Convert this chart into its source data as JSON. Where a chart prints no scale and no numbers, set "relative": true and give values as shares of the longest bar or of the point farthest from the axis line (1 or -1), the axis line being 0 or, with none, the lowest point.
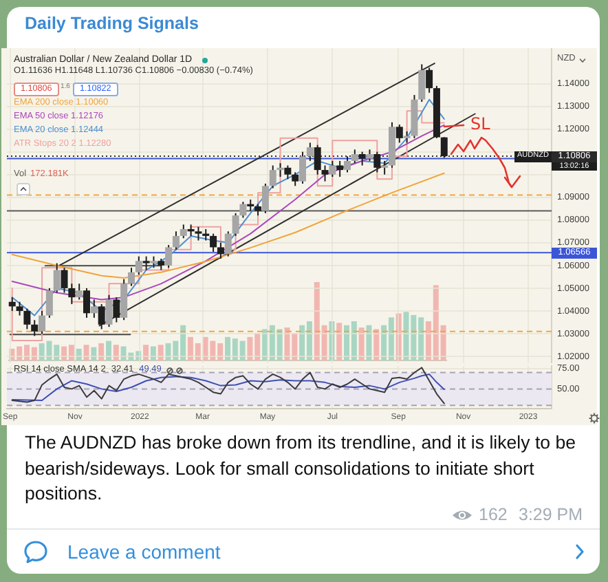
{
  "chart_data": [
    {
      "type": "candlestick",
      "title": "Daily Trading Signals",
      "subtitle": "Australian Dollar / New Zealand Dollar 1D",
      "x": [
        "2021-09-03",
        "2021-09-10",
        "2021-09-17",
        "2021-09-24",
        "2021-10-01",
        "2021-10-08",
        "2021-10-15",
        "2021-10-22",
        "2021-10-29",
        "2021-11-05",
        "2021-11-12",
        "2021-11-19",
        "2021-11-26",
        "2021-12-03",
        "2021-12-10",
        "2021-12-17",
        "2021-12-24",
        "2021-12-31",
        "2022-01-07",
        "2022-01-14",
        "2022-01-21",
        "2022-01-28",
        "2022-02-04",
        "2022-02-11",
        "2022-02-18",
        "2022-02-25",
        "2022-03-04",
        "2022-03-11",
        "2022-03-18",
        "2022-03-25",
        "2022-04-01",
        "2022-04-08",
        "2022-04-15",
        "2022-04-22",
        "2022-04-29",
        "2022-05-06",
        "2022-05-13",
        "2022-05-20",
        "2022-05-27",
        "2022-06-03",
        "2022-06-10",
        "2022-06-17",
        "2022-06-24",
        "2022-07-01",
        "2022-07-08",
        "2022-07-15",
        "2022-07-22",
        "2022-07-29",
        "2022-08-05",
        "2022-08-12",
        "2022-08-19",
        "2022-08-26",
        "2022-09-02",
        "2022-09-09",
        "2022-09-16",
        "2022-09-23",
        "2022-09-30",
        "2022-10-07",
        "2022-10-14"
      ],
      "ohlc": [
        [
          1.044,
          1.046,
          1.04,
          1.042
        ],
        [
          1.042,
          1.044,
          1.038,
          1.04
        ],
        [
          1.04,
          1.041,
          1.032,
          1.034
        ],
        [
          1.034,
          1.036,
          1.029,
          1.031
        ],
        [
          1.031,
          1.04,
          1.03,
          1.038
        ],
        [
          1.038,
          1.05,
          1.037,
          1.049
        ],
        [
          1.049,
          1.061,
          1.048,
          1.058
        ],
        [
          1.058,
          1.059,
          1.048,
          1.05
        ],
        [
          1.05,
          1.052,
          1.043,
          1.046
        ],
        [
          1.046,
          1.052,
          1.045,
          1.049
        ],
        [
          1.049,
          1.05,
          1.037,
          1.039
        ],
        [
          1.039,
          1.045,
          1.037,
          1.042
        ],
        [
          1.042,
          1.043,
          1.032,
          1.034
        ],
        [
          1.034,
          1.047,
          1.033,
          1.045
        ],
        [
          1.045,
          1.046,
          1.035,
          1.037
        ],
        [
          1.037,
          1.054,
          1.036,
          1.052
        ],
        [
          1.052,
          1.059,
          1.051,
          1.057
        ],
        [
          1.057,
          1.064,
          1.056,
          1.062
        ],
        [
          1.062,
          1.064,
          1.058,
          1.061
        ],
        [
          1.061,
          1.064,
          1.059,
          1.062
        ],
        [
          1.062,
          1.063,
          1.058,
          1.06
        ],
        [
          1.06,
          1.069,
          1.059,
          1.068
        ],
        [
          1.068,
          1.075,
          1.067,
          1.073
        ],
        [
          1.073,
          1.078,
          1.072,
          1.076
        ],
        [
          1.076,
          1.078,
          1.073,
          1.075
        ],
        [
          1.075,
          1.077,
          1.071,
          1.074
        ],
        [
          1.074,
          1.076,
          1.071,
          1.073
        ],
        [
          1.073,
          1.074,
          1.066,
          1.068
        ],
        [
          1.068,
          1.07,
          1.063,
          1.065
        ],
        [
          1.065,
          1.075,
          1.064,
          1.074
        ],
        [
          1.074,
          1.083,
          1.073,
          1.082
        ],
        [
          1.082,
          1.088,
          1.081,
          1.087
        ],
        [
          1.087,
          1.089,
          1.084,
          1.086
        ],
        [
          1.086,
          1.087,
          1.082,
          1.084
        ],
        [
          1.084,
          1.096,
          1.083,
          1.095
        ],
        [
          1.095,
          1.104,
          1.094,
          1.102
        ],
        [
          1.102,
          1.105,
          1.099,
          1.103
        ],
        [
          1.103,
          1.104,
          1.098,
          1.1
        ],
        [
          1.1,
          1.101,
          1.095,
          1.097
        ],
        [
          1.097,
          1.11,
          1.096,
          1.108
        ],
        [
          1.108,
          1.114,
          1.106,
          1.112
        ],
        [
          1.112,
          1.113,
          1.1,
          1.102
        ],
        [
          1.102,
          1.104,
          1.097,
          1.1
        ],
        [
          1.1,
          1.106,
          1.099,
          1.104
        ],
        [
          1.104,
          1.106,
          1.099,
          1.102
        ],
        [
          1.102,
          1.108,
          1.101,
          1.106
        ],
        [
          1.106,
          1.111,
          1.105,
          1.109
        ],
        [
          1.109,
          1.11,
          1.104,
          1.107
        ],
        [
          1.107,
          1.111,
          1.106,
          1.109
        ],
        [
          1.109,
          1.11,
          1.101,
          1.103
        ],
        [
          1.103,
          1.106,
          1.1,
          1.104
        ],
        [
          1.104,
          1.123,
          1.103,
          1.121
        ],
        [
          1.121,
          1.122,
          1.114,
          1.116
        ],
        [
          1.116,
          1.119,
          1.114,
          1.117
        ],
        [
          1.117,
          1.135,
          1.116,
          1.133
        ],
        [
          1.133,
          1.1485,
          1.132,
          1.146
        ],
        [
          1.146,
          1.147,
          1.136,
          1.138
        ],
        [
          1.138,
          1.139,
          1.116,
          1.1164
        ],
        [
          1.11636,
          1.11648,
          1.10736,
          1.10806
        ]
      ],
      "color": "#1f1f1f",
      "colors": [
        "#1f1f1f",
        "#1f1f1f",
        "#1f1f1f",
        "#1f1f1f",
        "#a6a6a6",
        "#a6a6a6",
        "#a6a6a6",
        "#1f1f1f",
        "#1f1f1f",
        "#a6a6a6",
        "#1f1f1f",
        "#a6a6a6",
        "#1f1f1f",
        "#a6a6a6",
        "#1f1f1f",
        "#a6a6a6",
        "#a6a6a6",
        "#a6a6a6",
        "#1f1f1f",
        "#a6a6a6",
        "#1f1f1f",
        "#a6a6a6",
        "#a6a6a6",
        "#a6a6a6",
        "#1f1f1f",
        "#1f1f1f",
        "#1f1f1f",
        "#1f1f1f",
        "#1f1f1f",
        "#a6a6a6",
        "#a6a6a6",
        "#a6a6a6",
        "#1f1f1f",
        "#1f1f1f",
        "#a6a6a6",
        "#a6a6a6",
        "#a6a6a6",
        "#1f1f1f",
        "#1f1f1f",
        "#a6a6a6",
        "#a6a6a6",
        "#1f1f1f",
        "#1f1f1f",
        "#a6a6a6",
        "#1f1f1f",
        "#a6a6a6",
        "#a6a6a6",
        "#1f1f1f",
        "#a6a6a6",
        "#1f1f1f",
        "#a6a6a6",
        "#a6a6a6",
        "#1f1f1f",
        "#a6a6a6",
        "#a6a6a6",
        "#a6a6a6",
        "#1f1f1f",
        "#1f1f1f",
        "#1f1f1f"
      ],
      "series": [
        {
          "name": "EMA 200 close 1.10060",
          "type": "line",
          "color": "#f2a33a",
          "x": [
            "2021-09-03",
            "2021-10-15",
            "2021-11-26",
            "2021-12-17",
            "2022-01-21",
            "2022-03-04",
            "2022-04-15",
            "2022-05-27",
            "2022-07-15",
            "2022-08-26",
            "2022-10-14"
          ],
          "values": [
            1.0648,
            1.06,
            1.0555,
            1.0545,
            1.057,
            1.0618,
            1.0678,
            1.0745,
            1.0842,
            1.092,
            1.1006
          ]
        },
        {
          "name": "EMA 50 close 1.12176",
          "type": "line",
          "color": "#ab47bc",
          "x": [
            "2021-09-03",
            "2021-10-15",
            "2021-11-26",
            "2021-12-17",
            "2022-01-21",
            "2022-03-04",
            "2022-04-15",
            "2022-05-27",
            "2022-06-24",
            "2022-07-29",
            "2022-08-26",
            "2022-09-23",
            "2022-10-14"
          ],
          "values": [
            1.053,
            1.048,
            1.045,
            1.046,
            1.052,
            1.062,
            1.074,
            1.089,
            1.1,
            1.106,
            1.11,
            1.117,
            1.12176
          ]
        },
        {
          "name": "EMA 20 close 1.12444",
          "type": "line",
          "color": "#4e8fd4",
          "x": [
            "2021-09-03",
            "2021-09-24",
            "2021-10-15",
            "2021-11-05",
            "2021-11-26",
            "2021-12-17",
            "2022-01-07",
            "2022-01-28",
            "2022-02-18",
            "2022-03-11",
            "2022-03-25",
            "2022-04-15",
            "2022-05-06",
            "2022-05-27",
            "2022-06-17",
            "2022-07-08",
            "2022-07-29",
            "2022-08-19",
            "2022-09-09",
            "2022-09-30",
            "2022-10-14"
          ],
          "values": [
            1.046,
            1.038,
            1.05,
            1.048,
            1.04,
            1.045,
            1.058,
            1.064,
            1.073,
            1.071,
            1.07,
            1.083,
            1.095,
            1.1,
            1.106,
            1.103,
            1.106,
            1.105,
            1.116,
            1.133,
            1.12444
          ]
        },
        {
          "name": "ATR Stops 20 2 1.12280",
          "type": "step",
          "color": "#f0a0a0",
          "x": [
            "2021-09-03",
            "2021-10-01",
            "2021-10-29",
            "2021-12-03",
            "2021-12-31",
            "2022-01-28",
            "2022-02-18",
            "2022-03-18",
            "2022-04-01",
            "2022-04-22",
            "2022-05-13",
            "2022-06-17",
            "2022-07-01",
            "2022-08-12",
            "2022-08-26",
            "2022-09-09",
            "2022-09-23",
            "2022-10-07",
            "2022-10-14"
          ],
          "values": [
            1.05,
            1.027,
            1.059,
            1.044,
            1.052,
            1.058,
            1.067,
            1.077,
            1.067,
            1.078,
            1.092,
            1.116,
            1.095,
            1.115,
            1.098,
            1.108,
            1.128,
            1.1228,
            1.1228
          ]
        },
        {
          "type": "line",
          "color": "#2f2f2f",
          "x": [
            "2021-10-17",
            "2022-10-05"
          ],
          "values": [
            1.0599,
            1.1489
          ]
        },
        {
          "type": "line",
          "color": "#2f2f2f",
          "x": [
            "2021-11-24",
            "2022-11-12"
          ],
          "values": [
            1.0335,
            1.1267
          ]
        },
        {
          "type": "line",
          "color": "#4a4a4a",
          "x": [
            "2021-10-04",
            "2022-01-21"
          ],
          "values": [
            1.0599,
            1.0599
          ]
        },
        {
          "type": "line",
          "color": "#4a4a4a",
          "x": [
            "2021-09-01",
            "2021-12-23"
          ],
          "values": [
            1.0296,
            1.0296
          ]
        }
      ],
      "xlim": [
        "2021-08-29",
        "2023-01-23"
      ],
      "xticks": [
        {
          "value": "2021-09-01",
          "label": null
        },
        {
          "value": "2021-11-01",
          "label": null
        },
        {
          "value": "2022-01-01",
          "label": null
        },
        {
          "value": "2022-03-01",
          "label": null
        },
        {
          "value": "2022-05-01",
          "label": null
        },
        {
          "value": "2022-07-01",
          "label": null
        },
        {
          "value": "2022-09-01",
          "label": null
        },
        {
          "value": "2022-11-01",
          "label": null
        },
        {
          "value": "2023-01-01",
          "label": null
        }
      ],
      "ylim": [
        1.017,
        1.1556
      ],
      "yticks": [
        {
          "value": 1.02,
          "label": "1.02000"
        },
        {
          "value": 1.03,
          "label": "1.03000"
        },
        {
          "value": 1.04,
          "label": "1.04000"
        },
        {
          "value": 1.05,
          "label": "1.05000"
        },
        {
          "value": 1.06,
          "label": "1.06000"
        },
        {
          "value": 1.07,
          "label": "1.07000"
        },
        {
          "value": 1.08,
          "label": "1.08000"
        },
        {
          "value": 1.09,
          "label": "1.09000"
        },
        {
          "value": 1.1,
          "label": null
        },
        {
          "value": 1.11,
          "label": null
        },
        {
          "value": 1.12,
          "label": "1.12000"
        },
        {
          "value": 1.13,
          "label": "1.13000"
        },
        {
          "value": 1.14,
          "label": "1.14000"
        }
      ],
      "ref_lines": [
        {
          "axis": "y",
          "value": 1.10806,
          "label": "1.10806",
          "color": "#2a2a2a",
          "line_style": "dotted"
        },
        {
          "axis": "y",
          "value": 1.107,
          "color": "#3b55d9"
        },
        {
          "axis": "y",
          "value": 1.06566,
          "label": "1.06566",
          "color": "#3b55d9"
        },
        {
          "axis": "y",
          "value": 1.084,
          "color": "#5a5a5a"
        },
        {
          "axis": "y",
          "value": 1.091,
          "color": "#f2a541",
          "line_style": "dashed"
        },
        {
          "axis": "y",
          "value": 1.031,
          "color": "#f2a541",
          "line_style": "dashed"
        }
      ],
      "annotations": [
        "O1.11636 H1.11648 L1.10736 C1.10806 −0.00830 (−0.74%)",
        "1.10806",
        "1.6",
        "1.10822",
        "NZD",
        "AUDNZD",
        "13:02:16",
        "SL",
        "The AUDNZD has broke down from its trendline, and it is likely to be bearish/sideways. Look for small consolidations to initiate short positions.",
        "162",
        "3:29 PM",
        "Leave a comment"
      ],
      "grid": true,
      "legend": "top left",
      "tick_labels": "y"
    },
    {
      "type": "bar",
      "title": "Vol",
      "categories": [
        null,
        null,
        null,
        null,
        null,
        null,
        null,
        null,
        null,
        null,
        null,
        null,
        null,
        null,
        null,
        null,
        null,
        null,
        null,
        null,
        null,
        null,
        null,
        null,
        null,
        null,
        null,
        null,
        null,
        null,
        null,
        null,
        null,
        null,
        null,
        null,
        null,
        null,
        null,
        null,
        null,
        null,
        null,
        null,
        null,
        null,
        null,
        null,
        null,
        null,
        null,
        null,
        null,
        null,
        null,
        null,
        null,
        null,
        null
      ],
      "values": [
        0.15,
        0.18,
        0.2,
        0.17,
        0.22,
        0.25,
        0.2,
        0.18,
        0.2,
        0.15,
        0.2,
        0.17,
        0.22,
        0.25,
        0.2,
        0.18,
        0.1,
        0.12,
        0.2,
        0.18,
        0.2,
        0.22,
        0.25,
        0.45,
        0.3,
        0.22,
        0.3,
        0.25,
        0.22,
        0.3,
        0.28,
        0.25,
        0.3,
        0.35,
        0.4,
        0.45,
        0.4,
        0.42,
        0.35,
        0.45,
        0.5,
        1,
        0.45,
        0.5,
        0.48,
        0.45,
        0.5,
        0.42,
        0.45,
        0.4,
        0.45,
        0.55,
        0.6,
        0.62,
        0.58,
        0.55,
        0.5,
        0.96,
        0.45
      ],
      "colors": [
        "#f2b6b1",
        "#f2b6b1",
        "#f2b6b1",
        "#f2b6b1",
        "#a9d6c3",
        "#a9d6c3",
        "#a9d6c3",
        "#f2b6b1",
        "#f2b6b1",
        "#a9d6c3",
        "#f2b6b1",
        "#a9d6c3",
        "#f2b6b1",
        "#a9d6c3",
        "#f2b6b1",
        "#a9d6c3",
        "#a9d6c3",
        "#a9d6c3",
        "#f2b6b1",
        "#a9d6c3",
        "#f2b6b1",
        "#a9d6c3",
        "#a9d6c3",
        "#a9d6c3",
        "#f2b6b1",
        "#f2b6b1",
        "#f2b6b1",
        "#f2b6b1",
        "#f2b6b1",
        "#a9d6c3",
        "#a9d6c3",
        "#a9d6c3",
        "#f2b6b1",
        "#f2b6b1",
        "#a9d6c3",
        "#a9d6c3",
        "#a9d6c3",
        "#f2b6b1",
        "#f2b6b1",
        "#a9d6c3",
        "#a9d6c3",
        "#f2b6b1",
        "#f2b6b1",
        "#a9d6c3",
        "#f2b6b1",
        "#a9d6c3",
        "#a9d6c3",
        "#f2b6b1",
        "#a9d6c3",
        "#f2b6b1",
        "#a9d6c3",
        "#a9d6c3",
        "#f2b6b1",
        "#a9d6c3",
        "#a9d6c3",
        "#a9d6c3",
        "#f2b6b1",
        "#f2b6b1",
        "#f2b6b1"
      ],
      "relative": true,
      "tick_labels": false,
      "annotations": [
        "172.181K"
      ]
    },
    {
      "type": "line",
      "title": "RSI 14 close SMA 14 2",
      "series": [
        {
          "color": "#3b3b3b",
          "x": [
            "2021-09-03",
            "2021-09-17",
            "2021-09-24",
            "2021-10-01",
            "2021-10-08",
            "2021-10-15",
            "2021-10-22",
            "2021-10-29",
            "2021-11-05",
            "2021-11-12",
            "2021-11-19",
            "2021-11-26",
            "2021-12-03",
            "2021-12-10",
            "2021-12-17",
            "2021-12-24",
            "2021-12-31",
            "2022-01-14",
            "2022-01-21",
            "2022-01-28",
            "2022-02-04",
            "2022-02-18",
            "2022-02-25",
            "2022-03-04",
            "2022-03-11",
            "2022-03-18",
            "2022-03-25",
            "2022-04-01",
            "2022-04-08",
            "2022-04-15",
            "2022-04-22",
            "2022-04-29",
            "2022-05-06",
            "2022-05-13",
            "2022-05-20",
            "2022-05-27",
            "2022-06-03",
            "2022-06-10",
            "2022-06-17",
            "2022-06-24",
            "2022-07-01",
            "2022-07-08",
            "2022-07-15",
            "2022-07-22",
            "2022-07-29",
            "2022-08-05",
            "2022-08-12",
            "2022-08-19",
            "2022-08-26",
            "2022-09-02",
            "2022-09-09",
            "2022-09-16",
            "2022-09-23",
            "2022-09-30",
            "2022-10-07",
            "2022-10-14"
          ],
          "values": [
            36,
            34,
            36,
            55,
            62,
            68,
            52,
            50,
            54,
            40,
            48,
            38,
            54,
            48,
            62,
            66,
            68,
            62,
            58,
            68,
            66,
            62,
            58,
            52,
            46,
            44,
            58,
            64,
            66,
            56,
            50,
            62,
            68,
            64,
            58,
            50,
            62,
            70,
            52,
            50,
            56,
            52,
            56,
            62,
            56,
            50,
            48,
            46,
            63,
            64,
            62,
            70,
            76,
            60,
            44,
            32.41
          ]
        },
        {
          "color": "#3e50b4",
          "x": [
            "2021-09-03",
            "2021-10-01",
            "2021-10-15",
            "2021-10-29",
            "2021-11-12",
            "2021-11-26",
            "2021-12-10",
            "2021-12-24",
            "2022-01-07",
            "2022-01-21",
            "2022-02-04",
            "2022-02-18",
            "2022-03-04",
            "2022-03-18",
            "2022-04-01",
            "2022-04-15",
            "2022-04-29",
            "2022-05-13",
            "2022-05-27",
            "2022-06-10",
            "2022-06-24",
            "2022-07-08",
            "2022-07-22",
            "2022-08-05",
            "2022-08-19",
            "2022-09-02",
            "2022-09-16",
            "2022-09-23",
            "2022-09-30",
            "2022-10-07",
            "2022-10-14"
          ],
          "values": [
            37,
            36,
            50,
            60,
            56,
            50,
            47,
            52,
            60,
            64,
            65,
            64,
            60,
            54,
            55,
            60,
            59,
            61,
            60,
            60,
            58,
            53,
            52,
            54,
            50,
            58,
            63,
            66,
            68,
            58,
            49.49
          ]
        }
      ],
      "xlim": [
        "2021-08-29",
        "2023-01-23"
      ],
      "xticks": [
        {
          "value": "2021-09-01",
          "label": "Sep"
        },
        {
          "value": "2021-11-01",
          "label": "Nov"
        },
        {
          "value": "2022-01-01",
          "label": "2022"
        },
        {
          "value": "2022-03-01",
          "label": "Mar"
        },
        {
          "value": "2022-05-01",
          "label": "May"
        },
        {
          "value": "2022-07-01",
          "label": "Jul"
        },
        {
          "value": "2022-09-01",
          "label": "Sep"
        },
        {
          "value": "2022-11-01",
          "label": "Nov"
        },
        {
          "value": "2023-01-01",
          "label": "2023"
        }
      ],
      "ylim": [
        26,
        78
      ],
      "yticks": [
        {
          "value": 50,
          "label": "50.00"
        },
        {
          "value": 75,
          "label": "75.00"
        }
      ],
      "ref_lines": [
        {
          "axis": "y",
          "value": 70,
          "color": "#a7a2b5",
          "line_style": "dashed"
        },
        {
          "axis": "y",
          "value": 50,
          "color": "#a7a2b5",
          "line_style": "dashed"
        },
        {
          "axis": "y",
          "value": 30,
          "color": "#a7a2b5",
          "line_style": "dashed"
        }
      ],
      "bands": [
        {
          "axis": "y",
          "from": 30,
          "to": 70,
          "color": "#ece8f2"
        }
      ],
      "annotations": [
        "32.41",
        "49.49"
      ],
      "grid": true
    }
  ]
}
